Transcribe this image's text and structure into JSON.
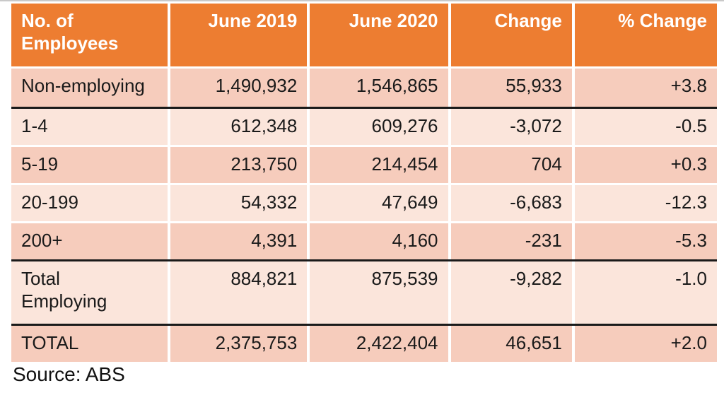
{
  "colors": {
    "header_bg": "#ED7D31",
    "header_text": "#ffffff",
    "band_dark": "#F6CCBC",
    "band_light": "#FBE5DB",
    "group_separator": "#1a1a1a"
  },
  "table": {
    "headers": [
      "No. of Employees",
      "June 2019",
      "June 2020",
      "Change",
      "% Change"
    ],
    "rows": [
      {
        "label": "Non-employing",
        "values": [
          "1,490,932",
          "1,546,865",
          "55,933",
          "+3.8"
        ]
      },
      {
        "label": "1-4",
        "values": [
          "612,348",
          "609,276",
          "-3,072",
          "-0.5"
        ]
      },
      {
        "label": "5-19",
        "values": [
          "213,750",
          "214,454",
          "704",
          "+0.3"
        ]
      },
      {
        "label": "20-199",
        "values": [
          "54,332",
          "47,649",
          "-6,683",
          "-12.3"
        ]
      },
      {
        "label": "200+",
        "values": [
          "4,391",
          "4,160",
          "-231",
          "-5.3"
        ]
      },
      {
        "label": "Total Employing",
        "values": [
          "884,821",
          "875,539",
          "-9,282",
          "-1.0"
        ]
      },
      {
        "label": "TOTAL",
        "values": [
          "2,375,753",
          "2,422,404",
          "46,651",
          "+2.0"
        ]
      }
    ]
  },
  "source_note": "Source: ABS"
}
